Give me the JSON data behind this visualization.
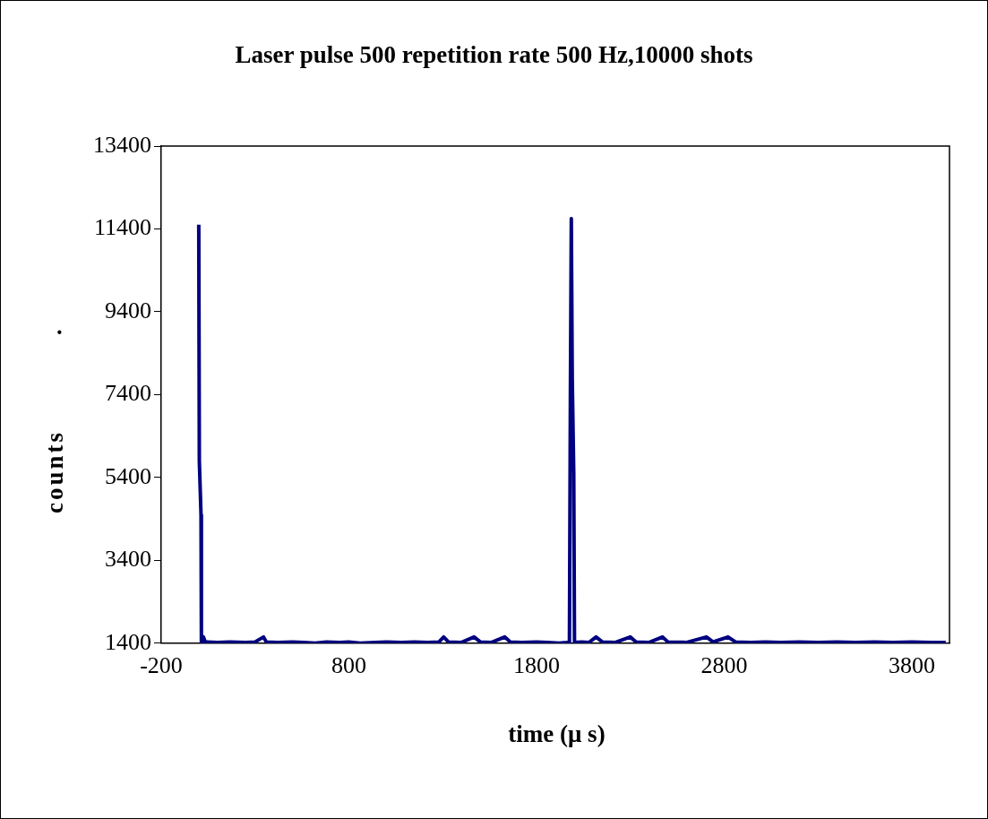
{
  "chart_data": {
    "type": "line",
    "title": "Laser pulse 500 repetition rate 500 Hz,10000 shots",
    "xlabel": "time (μ s)",
    "ylabel": "counts",
    "annotations": [
      "."
    ],
    "series": [
      {
        "color": "#000080",
        "x": [
          0,
          3,
          12,
          14,
          25,
          35,
          45,
          100,
          170,
          250,
          300,
          345,
          360,
          420,
          500,
          560,
          620,
          680,
          750,
          800,
          860,
          940,
          1000,
          1080,
          1150,
          1220,
          1280,
          1305,
          1330,
          1400,
          1467,
          1500,
          1560,
          1630,
          1660,
          1720,
          1800,
          1860,
          1920,
          1960,
          1975,
          1980,
          1985,
          1990,
          1998,
          2002,
          2040,
          2080,
          2117,
          2150,
          2220,
          2299,
          2330,
          2400,
          2471,
          2500,
          2600,
          2705,
          2740,
          2820,
          2860,
          2940,
          3020,
          3100,
          3200,
          3300,
          3400,
          3500,
          3600,
          3700,
          3800,
          3900,
          3980
        ],
        "values": [
          11500,
          5800,
          4500,
          1400,
          1550,
          1420,
          1430,
          1420,
          1430,
          1420,
          1430,
          1550,
          1430,
          1420,
          1430,
          1420,
          1400,
          1430,
          1420,
          1430,
          1400,
          1420,
          1430,
          1420,
          1430,
          1420,
          1430,
          1550,
          1430,
          1420,
          1550,
          1430,
          1420,
          1550,
          1430,
          1420,
          1430,
          1420,
          1400,
          1420,
          1430,
          7300,
          11650,
          7800,
          5500,
          1420,
          1430,
          1420,
          1550,
          1430,
          1420,
          1550,
          1430,
          1420,
          1550,
          1430,
          1420,
          1550,
          1430,
          1550,
          1430,
          1420,
          1430,
          1420,
          1430,
          1420,
          1430,
          1420,
          1430,
          1420,
          1430,
          1420,
          1420
        ]
      }
    ],
    "xlim": [
      -200,
      4000
    ],
    "xticks": [
      -200,
      800,
      1800,
      2800,
      3800
    ],
    "ylim": [
      1400,
      13400
    ],
    "yticks": [
      1400,
      3400,
      5400,
      7400,
      9400,
      11400,
      13400
    ],
    "grid": false,
    "legend": false,
    "marker": "none",
    "line_style": "solid"
  }
}
